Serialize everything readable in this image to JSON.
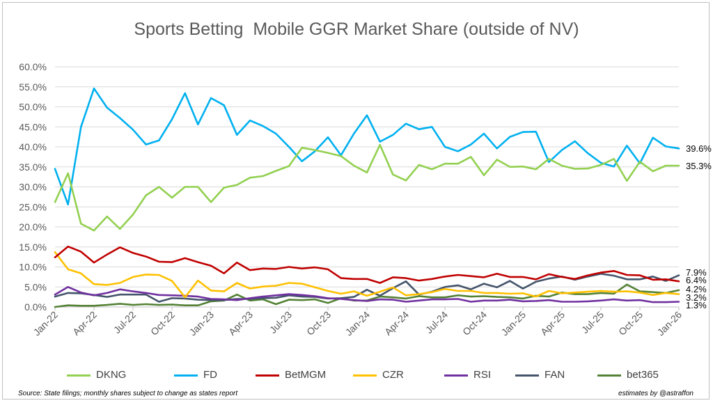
{
  "chart_data": {
    "type": "line",
    "title": "Sports Betting  Mobile GGR Market Share (outside of NV)",
    "xlabel": "",
    "ylabel": "",
    "ylim": [
      0,
      60
    ],
    "y_ticks": [
      "0.0%",
      "5.0%",
      "10.0%",
      "15.0%",
      "20.0%",
      "25.0%",
      "30.0%",
      "35.0%",
      "40.0%",
      "45.0%",
      "50.0%",
      "55.0%",
      "60.0%"
    ],
    "x_ticks": [
      "Jan-22",
      "Apr-22",
      "Jul-22",
      "Oct-22",
      "Jan-23",
      "Apr-23",
      "Jul-23",
      "Oct-23",
      "Jan-24",
      "Apr-24",
      "Jul-24",
      "Oct-24",
      "Jan-25",
      "Apr-25",
      "Jul-25",
      "Oct-25",
      "Jan-26"
    ],
    "x_months": [
      "Jan-22",
      "Feb-22",
      "Mar-22",
      "Apr-22",
      "May-22",
      "Jun-22",
      "Jul-22",
      "Aug-22",
      "Sep-22",
      "Oct-22",
      "Nov-22",
      "Dec-22",
      "Jan-23",
      "Feb-23",
      "Mar-23",
      "Apr-23",
      "May-23",
      "Jun-23",
      "Jul-23",
      "Aug-23",
      "Sep-23",
      "Oct-23",
      "Nov-23",
      "Dec-23",
      "Jan-24",
      "Feb-24",
      "Mar-24",
      "Apr-24",
      "May-24",
      "Jun-24",
      "Jul-24",
      "Aug-24",
      "Sep-24",
      "Oct-24",
      "Nov-24",
      "Dec-24",
      "Jan-25",
      "Feb-25",
      "Mar-25",
      "Apr-25",
      "May-25",
      "Jun-25",
      "Jul-25",
      "Aug-25",
      "Sep-25",
      "Oct-25",
      "Nov-25",
      "Dec-25",
      "Jan-26"
    ],
    "grid": "horizontal",
    "legend_position": "bottom",
    "series": [
      {
        "name": "DKNG",
        "color": "#92d050",
        "values": [
          26.2,
          33.4,
          20.8,
          19.1,
          22.6,
          19.5,
          23.1,
          27.9,
          30.0,
          27.3,
          30.0,
          30.0,
          26.2,
          29.8,
          30.5,
          32.3,
          32.7,
          34.0,
          35.2,
          39.8,
          39.2,
          38.5,
          37.7,
          35.3,
          33.6,
          40.5,
          33.1,
          31.6,
          35.5,
          34.4,
          35.8,
          35.8,
          37.5,
          32.9,
          36.8,
          35.0,
          35.1,
          34.4,
          37.0,
          35.3,
          34.5,
          34.6,
          35.5,
          37.0,
          31.5,
          36.3,
          33.9,
          35.3,
          35.3
        ]
      },
      {
        "name": "FD",
        "color": "#00b0f0",
        "values": [
          34.5,
          25.6,
          45.0,
          54.6,
          49.8,
          47.2,
          44.3,
          40.6,
          41.6,
          46.9,
          53.4,
          45.6,
          52.2,
          50.4,
          43.0,
          46.6,
          45.2,
          43.3,
          40.0,
          36.4,
          38.9,
          42.4,
          37.9,
          43.3,
          47.9,
          41.3,
          43.0,
          45.8,
          44.4,
          45.0,
          40.0,
          38.9,
          40.6,
          43.3,
          39.6,
          42.5,
          43.7,
          43.8,
          36.2,
          39.2,
          41.4,
          38.4,
          36.0,
          35.1,
          40.3,
          35.9,
          42.3,
          40.1,
          39.6
        ]
      },
      {
        "name": "BetMGM",
        "color": "#c00000",
        "values": [
          12.4,
          15.1,
          13.8,
          11.1,
          13.1,
          14.9,
          13.5,
          12.6,
          11.3,
          11.2,
          12.2,
          11.2,
          10.3,
          8.4,
          11.1,
          9.2,
          9.6,
          9.5,
          10.0,
          9.6,
          9.9,
          9.4,
          7.2,
          7.0,
          7.0,
          6.0,
          7.4,
          7.2,
          6.6,
          7.0,
          7.6,
          8.0,
          7.7,
          7.4,
          8.3,
          7.5,
          7.5,
          6.9,
          8.2,
          7.5,
          7.0,
          7.9,
          8.6,
          9.0,
          8.0,
          7.9,
          6.8,
          6.9,
          6.4
        ]
      },
      {
        "name": "CZR",
        "color": "#ffc000",
        "values": [
          13.7,
          9.4,
          8.4,
          5.7,
          5.5,
          6.0,
          7.5,
          8.1,
          8.0,
          6.5,
          2.4,
          6.6,
          4.1,
          3.9,
          6.0,
          4.6,
          5.1,
          5.3,
          6.0,
          5.8,
          4.9,
          4.0,
          3.3,
          3.9,
          2.8,
          3.8,
          4.9,
          2.9,
          3.2,
          3.7,
          4.5,
          4.0,
          4.0,
          3.5,
          3.5,
          3.3,
          3.4,
          2.6,
          4.0,
          3.4,
          3.6,
          3.8,
          4.0,
          3.8,
          3.9,
          3.6,
          3.0,
          3.5,
          3.2
        ]
      },
      {
        "name": "RSI",
        "color": "#7030a0",
        "values": [
          3.1,
          5.0,
          3.6,
          2.9,
          3.5,
          4.4,
          3.9,
          3.5,
          3.0,
          2.9,
          2.8,
          2.6,
          2.0,
          1.9,
          1.7,
          2.2,
          2.6,
          2.9,
          3.2,
          3.0,
          2.7,
          2.2,
          2.0,
          1.7,
          1.5,
          1.9,
          1.8,
          1.3,
          1.6,
          1.9,
          1.9,
          2.0,
          1.3,
          1.6,
          1.6,
          1.8,
          1.4,
          1.5,
          1.7,
          1.3,
          1.3,
          1.4,
          1.6,
          1.9,
          1.6,
          1.7,
          1.2,
          1.2,
          1.3
        ]
      },
      {
        "name": "FAN",
        "color": "#44546a",
        "values": [
          2.6,
          3.5,
          3.4,
          3.0,
          2.5,
          3.1,
          3.1,
          3.1,
          1.3,
          2.2,
          2.1,
          1.8,
          1.7,
          1.7,
          2.0,
          2.0,
          2.2,
          2.3,
          2.9,
          2.6,
          2.5,
          2.1,
          2.2,
          2.5,
          4.3,
          2.8,
          4.7,
          6.4,
          3.1,
          3.8,
          5.0,
          5.4,
          4.4,
          5.8,
          4.9,
          6.5,
          4.6,
          6.3,
          7.1,
          7.6,
          6.8,
          7.6,
          8.3,
          7.8,
          6.9,
          6.9,
          7.6,
          6.5,
          7.9
        ]
      },
      {
        "name": "bet365",
        "color": "#548235",
        "values": [
          0.0,
          0.4,
          0.3,
          0.3,
          0.5,
          0.8,
          0.5,
          0.7,
          0.5,
          0.6,
          0.4,
          0.4,
          1.4,
          1.6,
          3.1,
          1.6,
          1.9,
          0.7,
          1.8,
          1.7,
          1.9,
          1.0,
          2.2,
          1.6,
          1.6,
          2.6,
          2.4,
          2.1,
          2.7,
          2.4,
          2.4,
          2.9,
          2.6,
          2.7,
          2.5,
          2.4,
          2.1,
          2.8,
          2.6,
          3.6,
          3.2,
          3.2,
          3.5,
          3.3,
          5.6,
          3.9,
          3.7,
          3.5,
          4.2
        ]
      }
    ],
    "end_labels": [
      "39.6%",
      "35.3%",
      "7.9%",
      "6.4%",
      "4.2%",
      "3.2%",
      "1.3%"
    ]
  },
  "footnotes": {
    "source": "Source: State filings; monthly shares subject to change as states report",
    "credit": "estimates by @astraffon"
  }
}
